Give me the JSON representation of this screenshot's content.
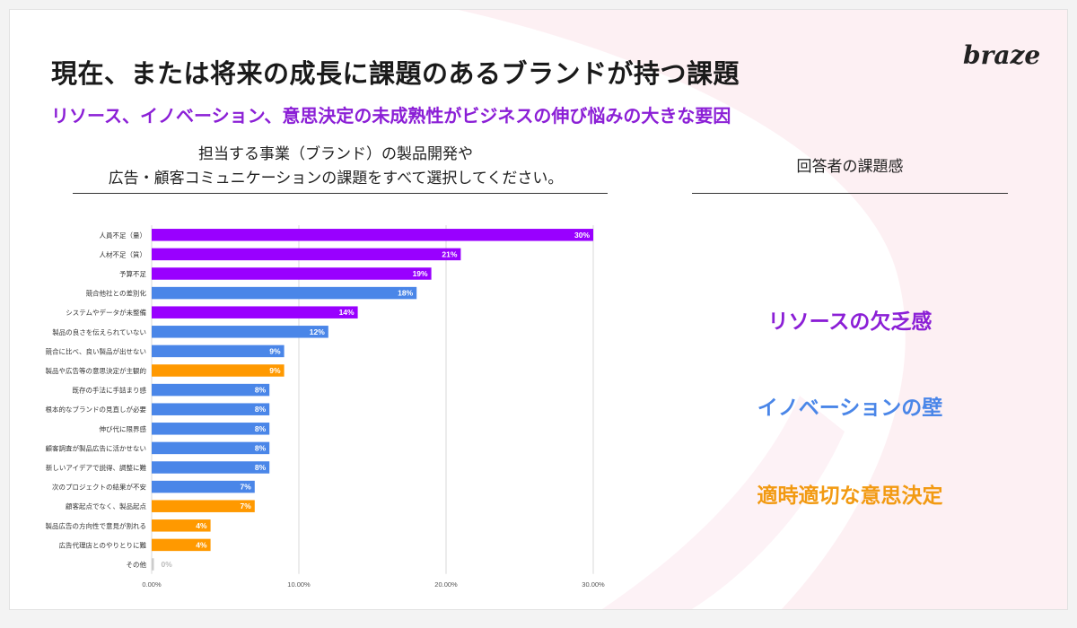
{
  "header": {
    "title": "現在、または将来の成長に課題のあるブランドが持つ課題",
    "subtitle": "リソース、イノベーション、意思決定の未成熟性がビジネスの伸び悩みの大きな要因",
    "logo_text": "braze"
  },
  "question": {
    "line1": "担当する事業（ブランド）の製品開発や",
    "line2": "広告・顧客コミュニケーションの課題をすべて選択してください。"
  },
  "right_panel": {
    "heading": "回答者の課題感",
    "categories": [
      {
        "label": "リソースの欠乏感",
        "color": "#8b1fd6"
      },
      {
        "label": "イノベーションの壁",
        "color": "#4a86e8"
      },
      {
        "label": "適時適切な意思決定",
        "color": "#f29a12"
      }
    ]
  },
  "chart_data": {
    "type": "bar",
    "orientation": "horizontal",
    "categories": [
      "人員不足（量）",
      "人材不足（質）",
      "予算不足",
      "競合他社との差別化",
      "システムやデータが未整備",
      "製品の良さを伝えられていない",
      "競合に比べ、良い製品が出せない",
      "製品や広告等の意思決定が主観的",
      "既存の手法に手詰まり感",
      "根本的なブランドの見直しが必要",
      "伸び代に限界感",
      "顧客調査が製品広告に活かせない",
      "新しいアイデアで説得、調整に難",
      "次のプロジェクトの結果が不安",
      "顧客起点でなく、製品起点",
      "製品広告の方向性で意見が割れる",
      "広告代理店とのやりとりに難",
      "その他"
    ],
    "values": [
      30,
      21,
      19,
      18,
      14,
      12,
      9,
      9,
      8,
      8,
      8,
      8,
      8,
      7,
      7,
      4,
      4,
      0
    ],
    "value_labels": [
      "30%",
      "21%",
      "19%",
      "18%",
      "14%",
      "12%",
      "9%",
      "9%",
      "8%",
      "8%",
      "8%",
      "8%",
      "8%",
      "7%",
      "7%",
      "4%",
      "4%",
      "0%"
    ],
    "bar_groups": [
      "resource",
      "resource",
      "resource",
      "innovation",
      "resource",
      "innovation",
      "innovation",
      "decision",
      "innovation",
      "innovation",
      "innovation",
      "innovation",
      "innovation",
      "innovation",
      "decision",
      "decision",
      "decision",
      "other"
    ],
    "group_colors": {
      "resource": "#9900ff",
      "innovation": "#4a86e8",
      "decision": "#ff9900",
      "other": "#cccccc"
    },
    "xlim": [
      0,
      30
    ],
    "xticks": [
      0,
      10,
      20,
      30
    ],
    "xtick_labels": [
      "0.00%",
      "10.00%",
      "20.00%",
      "30.00%"
    ],
    "grid": true
  }
}
